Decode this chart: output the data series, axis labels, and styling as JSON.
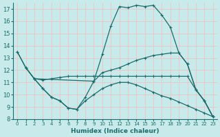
{
  "xlabel": "Humidex (Indice chaleur)",
  "ylabel": "",
  "bg_color": "#c8eaea",
  "grid_color": "#e8c8c8",
  "line_color": "#1a6b6b",
  "xlim": [
    -0.5,
    23.5
  ],
  "ylim": [
    8,
    17.5
  ],
  "yticks": [
    8,
    9,
    10,
    11,
    12,
    13,
    14,
    15,
    16,
    17
  ],
  "xticks": [
    0,
    1,
    2,
    3,
    4,
    5,
    6,
    7,
    8,
    9,
    10,
    11,
    12,
    13,
    14,
    15,
    16,
    17,
    18,
    19,
    20,
    21,
    22,
    23
  ],
  "curve1_x": [
    0,
    1,
    2,
    3,
    4,
    5,
    6,
    7,
    8,
    9,
    10,
    11,
    12,
    13,
    14,
    15,
    16,
    17,
    18,
    19,
    20,
    21,
    22,
    23
  ],
  "curve1_y": [
    13.5,
    12.2,
    11.3,
    10.5,
    9.8,
    9.5,
    8.9,
    8.8,
    9.8,
    11.1,
    13.3,
    15.6,
    17.2,
    17.1,
    17.3,
    17.2,
    17.3,
    16.5,
    15.5,
    13.4,
    12.5,
    10.4,
    9.5,
    8.2
  ],
  "curve2_x": [
    0,
    1,
    2,
    9,
    10,
    11,
    12,
    13,
    14,
    15,
    16,
    17,
    18,
    19,
    20,
    21,
    22,
    23
  ],
  "curve2_y": [
    13.5,
    12.2,
    11.3,
    11.1,
    11.8,
    12.0,
    12.2,
    12.5,
    12.8,
    13.0,
    13.2,
    13.3,
    13.4,
    13.4,
    12.5,
    10.4,
    9.5,
    8.2
  ],
  "curve3_x": [
    1,
    2,
    3,
    4,
    5,
    6,
    7,
    8,
    9,
    10,
    11,
    12,
    13,
    14,
    15,
    16,
    17,
    18,
    19,
    20,
    21,
    22,
    23
  ],
  "curve3_y": [
    12.2,
    11.3,
    11.2,
    11.3,
    11.4,
    11.5,
    11.5,
    11.5,
    11.5,
    11.5,
    11.5,
    11.5,
    11.5,
    11.5,
    11.5,
    11.5,
    11.5,
    11.5,
    11.5,
    11.5,
    10.4,
    9.5,
    8.2
  ],
  "curve4_x": [
    2,
    3,
    4,
    5,
    6,
    7,
    8,
    9,
    10,
    11,
    12,
    13,
    14,
    15,
    16,
    17,
    18,
    19,
    20,
    21,
    22,
    23
  ],
  "curve4_y": [
    11.3,
    10.5,
    9.8,
    9.5,
    8.9,
    8.8,
    9.5,
    10.0,
    10.5,
    10.8,
    11.0,
    11.0,
    10.8,
    10.5,
    10.2,
    9.9,
    9.7,
    9.4,
    9.1,
    8.8,
    8.5,
    8.2
  ]
}
